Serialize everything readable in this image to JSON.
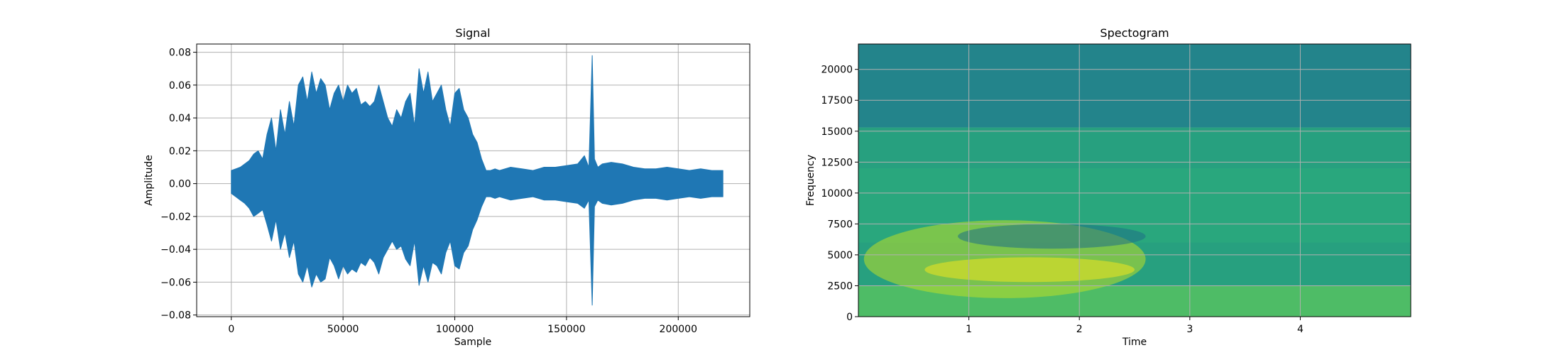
{
  "chart_data": [
    {
      "type": "line",
      "title": "Signal",
      "xlabel": "Sample",
      "ylabel": "Amplitude",
      "xlim": [
        -15500,
        232000
      ],
      "ylim": [
        -0.081,
        0.085
      ],
      "x_ticks": [
        0,
        50000,
        100000,
        150000,
        200000
      ],
      "x_tick_labels": [
        "0",
        "50000",
        "100000",
        "150000",
        "200000"
      ],
      "y_ticks": [
        -0.08,
        -0.06,
        -0.04,
        -0.02,
        0.0,
        0.02,
        0.04,
        0.06,
        0.08
      ],
      "y_tick_labels": [
        "−0.08",
        "−0.06",
        "−0.04",
        "−0.02",
        "0.00",
        "0.02",
        "0.04",
        "0.06",
        "0.08"
      ],
      "grid": true,
      "series": [
        {
          "color": "#1f77b4",
          "envelope": {
            "x": [
              0,
              2000,
              4000,
              6000,
              8000,
              10000,
              12000,
              14000,
              16000,
              18000,
              20000,
              22000,
              24000,
              26000,
              28000,
              30000,
              32000,
              34000,
              36000,
              38000,
              40000,
              42000,
              44000,
              46000,
              48000,
              50000,
              52000,
              54000,
              56000,
              58000,
              60000,
              62000,
              64000,
              66000,
              68000,
              70000,
              72000,
              74000,
              76000,
              78000,
              80000,
              82000,
              84000,
              86000,
              88000,
              90000,
              92000,
              94000,
              96000,
              98000,
              100000,
              102000,
              104000,
              106000,
              108000,
              110000,
              112000,
              114000,
              116000,
              118000,
              120000,
              125000,
              130000,
              135000,
              140000,
              145000,
              150000,
              155000,
              158000,
              160000,
              161500,
              162500,
              164000,
              166000,
              170000,
              175000,
              180000,
              185000,
              190000,
              195000,
              200000,
              205000,
              210000,
              215000,
              220000
            ],
            "upper": [
              0.008,
              0.009,
              0.01,
              0.012,
              0.014,
              0.018,
              0.02,
              0.015,
              0.03,
              0.04,
              0.02,
              0.045,
              0.03,
              0.05,
              0.035,
              0.06,
              0.065,
              0.05,
              0.068,
              0.055,
              0.064,
              0.06,
              0.045,
              0.055,
              0.06,
              0.05,
              0.06,
              0.055,
              0.058,
              0.048,
              0.05,
              0.047,
              0.05,
              0.06,
              0.05,
              0.04,
              0.035,
              0.045,
              0.04,
              0.05,
              0.055,
              0.035,
              0.07,
              0.055,
              0.068,
              0.05,
              0.055,
              0.06,
              0.045,
              0.035,
              0.055,
              0.058,
              0.045,
              0.04,
              0.03,
              0.025,
              0.015,
              0.008,
              0.008,
              0.009,
              0.008,
              0.01,
              0.009,
              0.008,
              0.01,
              0.01,
              0.011,
              0.012,
              0.017,
              0.01,
              0.078,
              0.015,
              0.01,
              0.012,
              0.013,
              0.012,
              0.01,
              0.009,
              0.009,
              0.01,
              0.009,
              0.008,
              0.009,
              0.008,
              0.008
            ],
            "lower": [
              -0.006,
              -0.008,
              -0.01,
              -0.012,
              -0.015,
              -0.02,
              -0.018,
              -0.016,
              -0.025,
              -0.035,
              -0.022,
              -0.04,
              -0.03,
              -0.045,
              -0.035,
              -0.055,
              -0.06,
              -0.05,
              -0.063,
              -0.055,
              -0.06,
              -0.058,
              -0.045,
              -0.05,
              -0.058,
              -0.05,
              -0.055,
              -0.052,
              -0.054,
              -0.048,
              -0.05,
              -0.045,
              -0.048,
              -0.055,
              -0.045,
              -0.04,
              -0.035,
              -0.04,
              -0.038,
              -0.046,
              -0.05,
              -0.035,
              -0.062,
              -0.05,
              -0.06,
              -0.048,
              -0.05,
              -0.055,
              -0.042,
              -0.035,
              -0.05,
              -0.052,
              -0.042,
              -0.038,
              -0.028,
              -0.022,
              -0.014,
              -0.008,
              -0.008,
              -0.009,
              -0.008,
              -0.01,
              -0.009,
              -0.008,
              -0.01,
              -0.01,
              -0.011,
              -0.012,
              -0.015,
              -0.01,
              -0.074,
              -0.014,
              -0.01,
              -0.012,
              -0.013,
              -0.012,
              -0.01,
              -0.009,
              -0.009,
              -0.01,
              -0.009,
              -0.008,
              -0.009,
              -0.008,
              -0.008
            ]
          }
        }
      ]
    },
    {
      "type": "heatmap",
      "title": "Spectogram",
      "xlabel": "Time",
      "ylabel": "Frequency",
      "xlim": [
        0,
        5.0
      ],
      "ylim": [
        0,
        22050
      ],
      "x_ticks": [
        1,
        2,
        3,
        4
      ],
      "x_tick_labels": [
        "1",
        "2",
        "3",
        "4"
      ],
      "y_ticks": [
        0,
        2500,
        5000,
        7500,
        10000,
        12500,
        15000,
        17500,
        20000
      ],
      "y_tick_labels": [
        "0",
        "2500",
        "5000",
        "7500",
        "10000",
        "12500",
        "15000",
        "17500",
        "20000"
      ],
      "grid": true,
      "colormap": "viridis",
      "colors": {
        "dark_band": "#23848b",
        "mid_band": "#27a07f",
        "mid_band_alt": "#2bac7b",
        "low_band": "#4ebc66",
        "bright": "#bdde26",
        "peak": "#f2e51d",
        "dark_dip": "#1f6f86"
      },
      "bands": [
        {
          "from": 15300,
          "to": 22050,
          "level": "dark_band"
        },
        {
          "from": 2500,
          "to": 15300,
          "level": "mid_band"
        },
        {
          "from": 0,
          "to": 2500,
          "level": "low_band"
        }
      ],
      "highlights": [
        {
          "t_start": 0.05,
          "t_end": 2.6,
          "f_low": 1500,
          "f_high": 7800,
          "level": "bright"
        },
        {
          "t_start": 0.6,
          "t_end": 2.5,
          "f_low": 2800,
          "f_high": 4800,
          "level": "peak"
        },
        {
          "t_start": 0.9,
          "t_end": 2.6,
          "f_low": 5500,
          "f_high": 7500,
          "level": "dark_dip"
        }
      ]
    }
  ]
}
